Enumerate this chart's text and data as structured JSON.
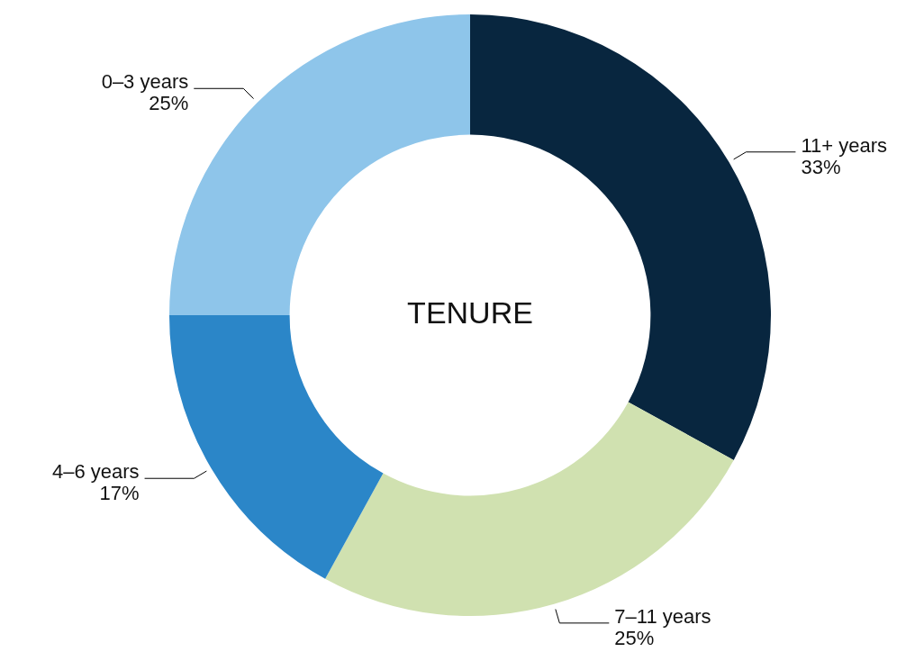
{
  "chart_data": {
    "type": "donut",
    "title": "TENURE",
    "categories": [
      "11+ years",
      "7–11 years",
      "4–6 years",
      "0–3 years"
    ],
    "values": [
      33,
      25,
      17,
      25
    ],
    "value_labels": [
      "33%",
      "25%",
      "17%",
      "25%"
    ],
    "colors": [
      "#08263f",
      "#d0e1b0",
      "#2b86c8",
      "#8ec5ea"
    ],
    "legend": false
  }
}
